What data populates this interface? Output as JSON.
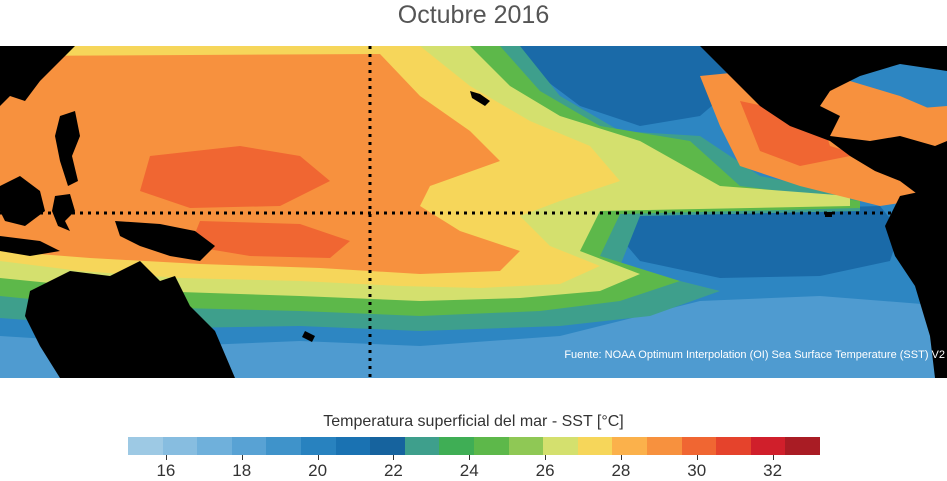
{
  "title": "Octubre 2016",
  "source": "Fuente: NOAA Optimum Interpolation (OI) Sea Surface Temperature (SST) V2",
  "colorbar": {
    "label": "Temperatura superficial del mar - SST  [°C]",
    "min": 15,
    "max": 33.25,
    "colors": [
      "#9dc9e4",
      "#87bde0",
      "#6fb0db",
      "#58a2d4",
      "#3f93ca",
      "#2882bf",
      "#1a72b2",
      "#16639e",
      "#3e9f8c",
      "#3fae55",
      "#5db84a",
      "#8fc855",
      "#d4e06e",
      "#f6d65a",
      "#fbb14b",
      "#f7913e",
      "#f06632",
      "#e5432c",
      "#d01f2b",
      "#a91c24"
    ],
    "ticks": [
      "16",
      "18",
      "20",
      "22",
      "24",
      "26",
      "28",
      "30",
      "32"
    ]
  },
  "map": {
    "colors": {
      "land": "#000000",
      "ocean_cold": "#6aabd8",
      "ocean_cool": "#2d86c2",
      "ocean_mid": "#1a6aa8",
      "teal": "#3e9f8c",
      "green": "#5db84a",
      "yellow": "#d4e06e",
      "light_orange": "#f6d65a",
      "orange": "#f7913e",
      "hot": "#f06632"
    },
    "reference_lines": [
      "equator-line",
      "dateline-line"
    ]
  }
}
